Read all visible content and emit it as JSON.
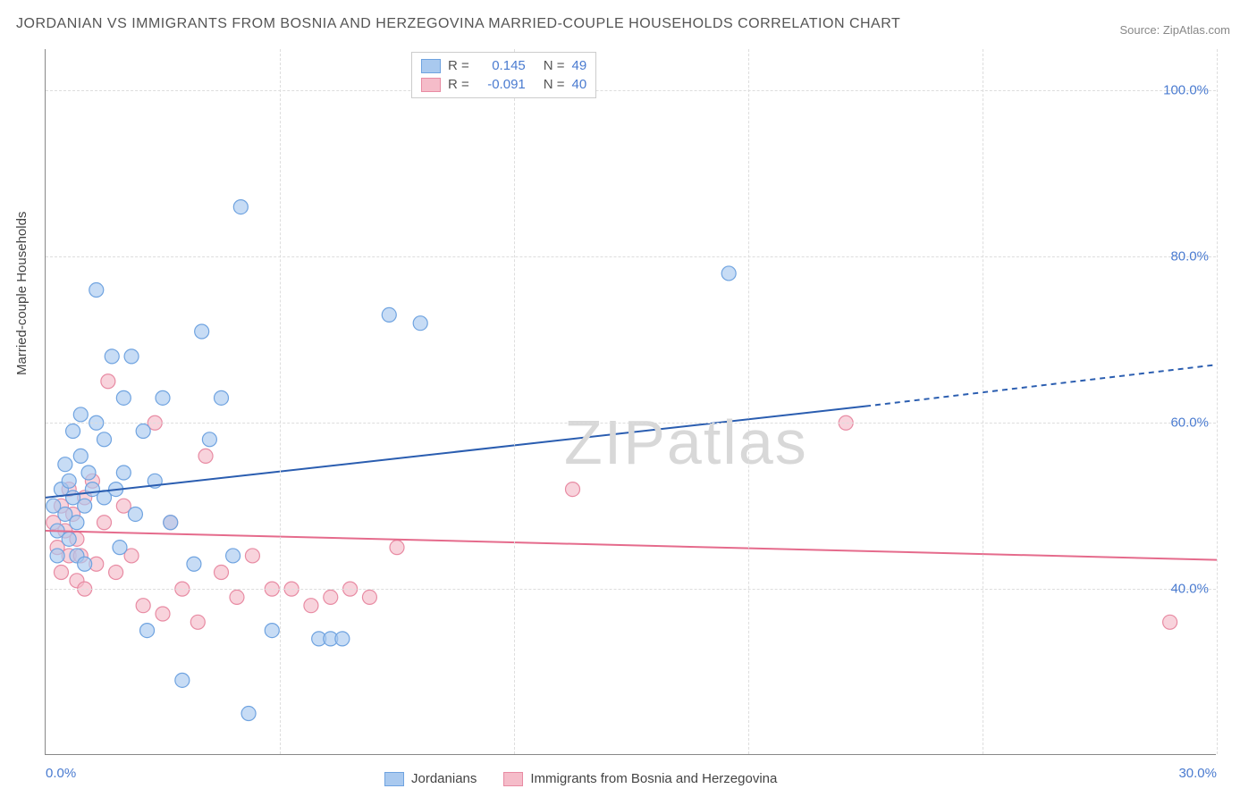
{
  "title": "JORDANIAN VS IMMIGRANTS FROM BOSNIA AND HERZEGOVINA MARRIED-COUPLE HOUSEHOLDS CORRELATION CHART",
  "source": "Source: ZipAtlas.com",
  "watermark": "ZIPatlas",
  "yaxis_label": "Married-couple Households",
  "chart": {
    "type": "scatter",
    "xlim": [
      0,
      30
    ],
    "ylim": [
      20,
      105
    ],
    "xtick_labels": [
      "0.0%",
      "30.0%"
    ],
    "xtick_positions": [
      0,
      30
    ],
    "ytick_labels": [
      "40.0%",
      "60.0%",
      "80.0%",
      "100.0%"
    ],
    "ytick_positions": [
      40,
      60,
      80,
      100
    ],
    "vgrid_positions": [
      6,
      12,
      18,
      24,
      30
    ],
    "background_color": "#ffffff",
    "grid_color": "#dddddd",
    "axis_text_color": "#4a7bd0",
    "series": {
      "jordanians": {
        "label": "Jordanians",
        "color_fill": "#a9c9ef",
        "color_stroke": "#6fa3e0",
        "opacity": 0.65,
        "marker_radius": 8,
        "R": "0.145",
        "N": "49",
        "regression": {
          "x1": 0,
          "y1": 51,
          "x2": 21,
          "y2": 62,
          "x2_dash": 30,
          "y2_dash": 67,
          "color": "#2a5db0",
          "width": 2
        },
        "points": [
          [
            0.2,
            50
          ],
          [
            0.3,
            47
          ],
          [
            0.3,
            44
          ],
          [
            0.4,
            52
          ],
          [
            0.5,
            49
          ],
          [
            0.5,
            55
          ],
          [
            0.6,
            53
          ],
          [
            0.6,
            46
          ],
          [
            0.7,
            51
          ],
          [
            0.7,
            59
          ],
          [
            0.8,
            44
          ],
          [
            0.8,
            48
          ],
          [
            0.9,
            56
          ],
          [
            0.9,
            61
          ],
          [
            1.0,
            50
          ],
          [
            1.0,
            43
          ],
          [
            1.1,
            54
          ],
          [
            1.2,
            52
          ],
          [
            1.3,
            60
          ],
          [
            1.3,
            76
          ],
          [
            1.5,
            58
          ],
          [
            1.5,
            51
          ],
          [
            1.7,
            68
          ],
          [
            1.8,
            52
          ],
          [
            1.9,
            45
          ],
          [
            2.0,
            63
          ],
          [
            2.0,
            54
          ],
          [
            2.2,
            68
          ],
          [
            2.3,
            49
          ],
          [
            2.5,
            59
          ],
          [
            2.6,
            35
          ],
          [
            2.8,
            53
          ],
          [
            3.0,
            63
          ],
          [
            3.2,
            48
          ],
          [
            3.5,
            29
          ],
          [
            3.8,
            43
          ],
          [
            4.0,
            71
          ],
          [
            4.2,
            58
          ],
          [
            4.5,
            63
          ],
          [
            4.8,
            44
          ],
          [
            5.0,
            86
          ],
          [
            5.2,
            25
          ],
          [
            5.8,
            35
          ],
          [
            7.0,
            34
          ],
          [
            7.3,
            34
          ],
          [
            7.6,
            34
          ],
          [
            8.8,
            73
          ],
          [
            9.6,
            72
          ],
          [
            17.5,
            78
          ]
        ]
      },
      "bosnia": {
        "label": "Immigrants from Bosnia and Herzegovina",
        "color_fill": "#f5bcc9",
        "color_stroke": "#e88ba3",
        "opacity": 0.65,
        "marker_radius": 8,
        "R": "-0.091",
        "N": "40",
        "regression": {
          "x1": 0,
          "y1": 47,
          "x2": 30,
          "y2": 43.5,
          "color": "#e56b8c",
          "width": 2
        },
        "points": [
          [
            0.2,
            48
          ],
          [
            0.3,
            45
          ],
          [
            0.4,
            50
          ],
          [
            0.4,
            42
          ],
          [
            0.5,
            47
          ],
          [
            0.6,
            44
          ],
          [
            0.6,
            52
          ],
          [
            0.7,
            49
          ],
          [
            0.8,
            41
          ],
          [
            0.8,
            46
          ],
          [
            0.9,
            44
          ],
          [
            1.0,
            51
          ],
          [
            1.0,
            40
          ],
          [
            1.2,
            53
          ],
          [
            1.3,
            43
          ],
          [
            1.5,
            48
          ],
          [
            1.6,
            65
          ],
          [
            1.8,
            42
          ],
          [
            2.0,
            50
          ],
          [
            2.2,
            44
          ],
          [
            2.5,
            38
          ],
          [
            2.8,
            60
          ],
          [
            3.0,
            37
          ],
          [
            3.2,
            48
          ],
          [
            3.5,
            40
          ],
          [
            3.9,
            36
          ],
          [
            4.1,
            56
          ],
          [
            4.5,
            42
          ],
          [
            4.9,
            39
          ],
          [
            5.3,
            44
          ],
          [
            5.8,
            40
          ],
          [
            6.3,
            40
          ],
          [
            6.8,
            38
          ],
          [
            7.3,
            39
          ],
          [
            7.8,
            40
          ],
          [
            9.0,
            45
          ],
          [
            13.5,
            52
          ],
          [
            20.5,
            60
          ],
          [
            28.8,
            36
          ],
          [
            8.3,
            39
          ]
        ]
      }
    }
  },
  "legend_top": {
    "rows": [
      {
        "swatch_fill": "#a9c9ef",
        "swatch_stroke": "#6fa3e0",
        "r_label": "R =",
        "r_value": "0.145",
        "n_label": "N =",
        "n_value": "49"
      },
      {
        "swatch_fill": "#f5bcc9",
        "swatch_stroke": "#e88ba3",
        "r_label": "R =",
        "r_value": "-0.091",
        "n_label": "N =",
        "n_value": "40"
      }
    ]
  },
  "legend_bottom": [
    {
      "swatch_fill": "#a9c9ef",
      "swatch_stroke": "#6fa3e0",
      "label": "Jordanians"
    },
    {
      "swatch_fill": "#f5bcc9",
      "swatch_stroke": "#e88ba3",
      "label": "Immigrants from Bosnia and Herzegovina"
    }
  ]
}
